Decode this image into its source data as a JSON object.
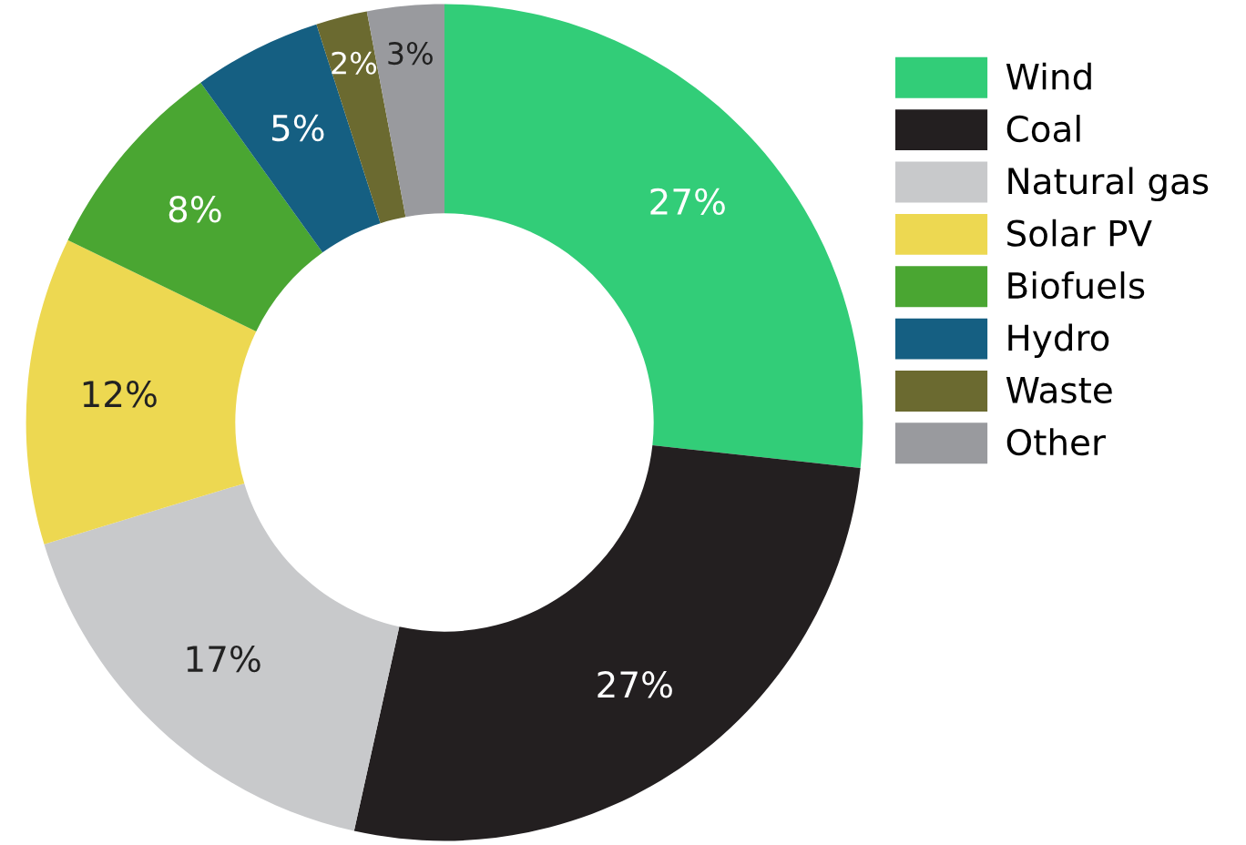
{
  "chart_data": {
    "type": "donut",
    "categories": [
      "Wind",
      "Coal",
      "Natural gas",
      "Solar PV",
      "Biofuels",
      "Hydro",
      "Waste",
      "Other"
    ],
    "values": [
      27,
      27,
      17,
      12,
      8,
      5,
      2,
      3
    ],
    "colors": [
      "#32cd78",
      "#231f20",
      "#c8c9cb",
      "#edd851",
      "#4aa632",
      "#155f82",
      "#6b6a30",
      "#999a9e"
    ],
    "value_labels": [
      "27%",
      "27%",
      "17%",
      "12%",
      "8%",
      "5%",
      "2%",
      "3%"
    ],
    "legend": "right"
  }
}
